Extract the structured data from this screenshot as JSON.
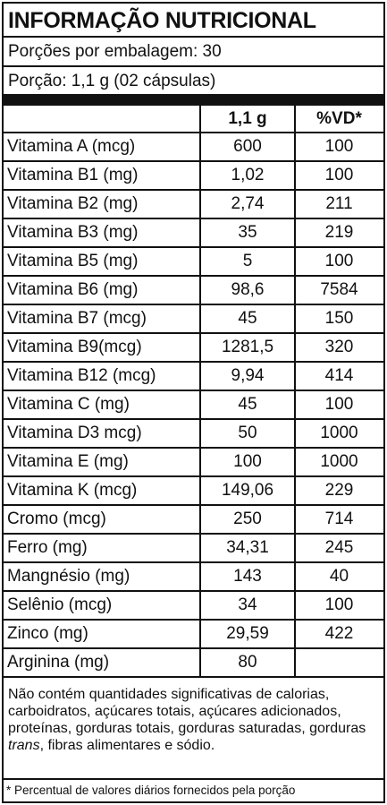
{
  "header": {
    "title": "INFORMAÇÃO NUTRICIONAL",
    "servings_per_package": "Porções por embalagem: 30",
    "serving_size": "Porção: 1,1 g (02 cápsulas)"
  },
  "table": {
    "columns": [
      "1,1 g",
      "%VD*"
    ],
    "rows": [
      [
        "Vitamina A (mcg)",
        "600",
        "100"
      ],
      [
        "Vitamina B1 (mg)",
        "1,02",
        "100"
      ],
      [
        "Vitamina B2 (mg)",
        "2,74",
        "211"
      ],
      [
        "Vitamina B3 (mg)",
        "35",
        "219"
      ],
      [
        "Vitamina B5 (mg)",
        "5",
        "100"
      ],
      [
        "Vitamina B6 (mg)",
        "98,6",
        "7584"
      ],
      [
        "Vitamina B7 (mcg)",
        "45",
        "150"
      ],
      [
        "Vitamina B9(mcg)",
        "1281,5",
        "320"
      ],
      [
        "Vitamina B12 (mcg)",
        "9,94",
        "414"
      ],
      [
        "Vitamina C (mg)",
        "45",
        "100"
      ],
      [
        "Vitamina D3 mcg)",
        "50",
        "1000"
      ],
      [
        "Vitamina E (mg)",
        "100",
        "1000"
      ],
      [
        "Vitamina K (mcg)",
        "149,06",
        "229"
      ],
      [
        "Cromo (mcg)",
        "250",
        "714"
      ],
      [
        "Ferro (mg)",
        "34,31",
        "245"
      ],
      [
        "Mangnésio (mg)",
        "143",
        "40"
      ],
      [
        "Selênio (mcg)",
        "34",
        "100"
      ],
      [
        "Zinco (mg)",
        "29,59",
        "422"
      ],
      [
        "Arginina (mg)",
        "80"
      ]
    ]
  },
  "note": [
    "Não contém quantidades significativas de calorias, carboidratos, açúcares totais, açúcares adicionados, proteínas, gorduras totais, gorduras saturadas, gorduras ",
    "trans",
    ", fibras alimentares e sódio."
  ],
  "footnote": "* Percentual de valores diários fornecidos pela porção"
}
